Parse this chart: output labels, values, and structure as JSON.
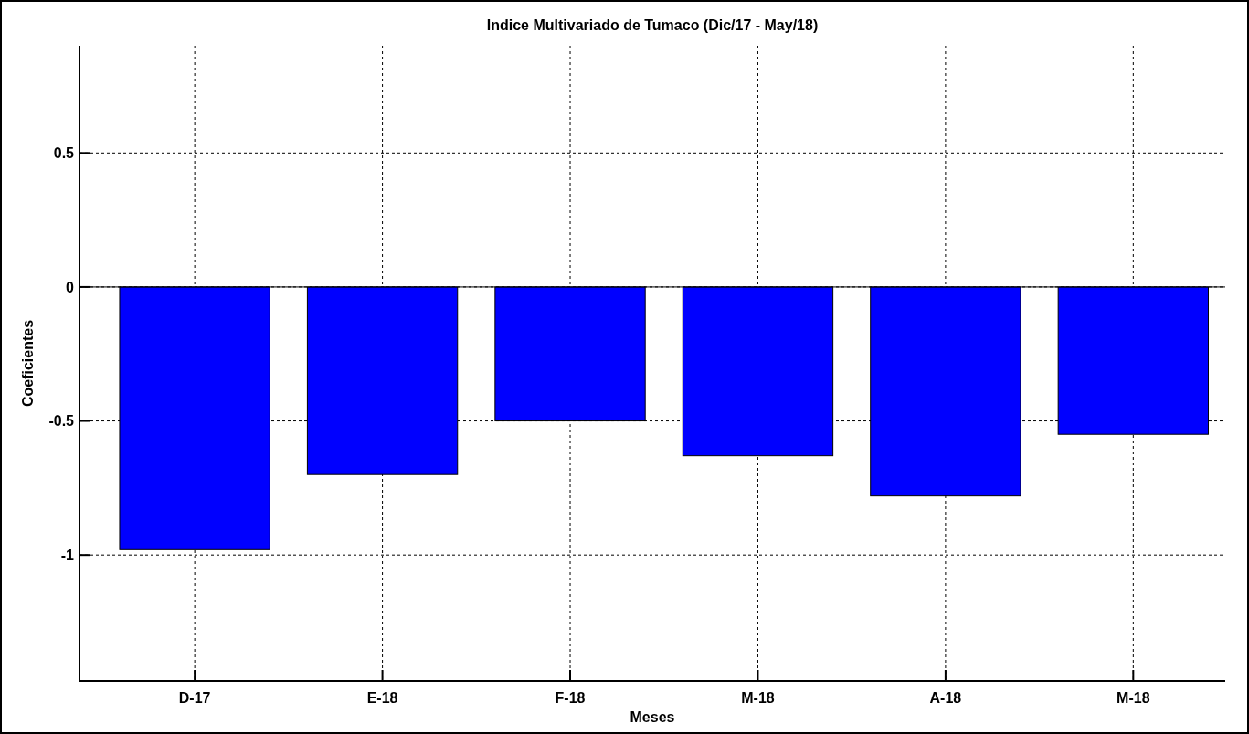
{
  "chart_data": {
    "type": "bar",
    "title": "Indice Multivariado de Tumaco (Dic/17 - May/18)",
    "xlabel": "Meses",
    "ylabel": "Coeficientes",
    "categories": [
      "D-17",
      "E-18",
      "F-18",
      "M-18",
      "A-18",
      "M-18"
    ],
    "values": [
      -0.98,
      -0.7,
      -0.5,
      -0.63,
      -0.78,
      -0.55
    ],
    "color": "#0000ff",
    "ylim": [
      -1.47,
      0.9
    ],
    "yticks": [
      -1,
      -0.5,
      0,
      0.5
    ],
    "grid": true
  }
}
